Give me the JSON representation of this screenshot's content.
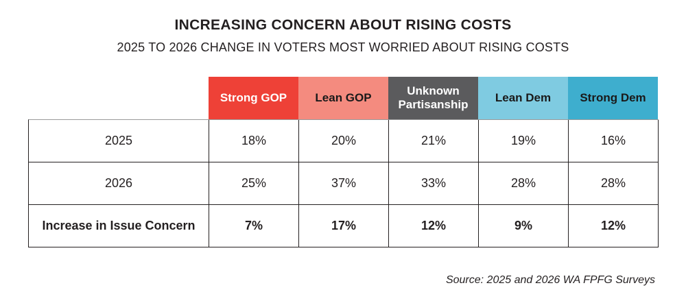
{
  "title": "INCREASING CONCERN ABOUT RISING COSTS",
  "subtitle": "2025 TO 2026 CHANGE IN VOTERS MOST WORRIED ABOUT RISING COSTS",
  "source": "Source: 2025 and 2026 WA FPFG Surveys",
  "colors": {
    "strong_gop": "#EE4137",
    "lean_gop": "#F48B7F",
    "unknown_partisanship": "#5B5B5D",
    "lean_dem": "#7FCBE1",
    "strong_dem": "#3EAECE",
    "text_dark": "#231F20",
    "header_text_light": "#FFFFFF"
  },
  "chart_data": {
    "type": "table",
    "title": "INCREASING CONCERN ABOUT RISING COSTS",
    "subtitle": "2025 TO 2026 CHANGE IN VOTERS MOST WORRIED ABOUT RISING COSTS",
    "columns": [
      "Strong GOP",
      "Lean GOP",
      "Unknown Partisanship",
      "Lean Dem",
      "Strong Dem"
    ],
    "rows": [
      {
        "label": "2025",
        "values": [
          "18%",
          "20%",
          "21%",
          "19%",
          "16%"
        ],
        "bold": false
      },
      {
        "label": "2026",
        "values": [
          "25%",
          "37%",
          "33%",
          "28%",
          "28%"
        ],
        "bold": false
      },
      {
        "label": "Increase in Issue Concern",
        "values": [
          "7%",
          "17%",
          "12%",
          "9%",
          "12%"
        ],
        "bold": true
      }
    ],
    "source": "Source: 2025 and 2026 WA FPFG Surveys"
  }
}
